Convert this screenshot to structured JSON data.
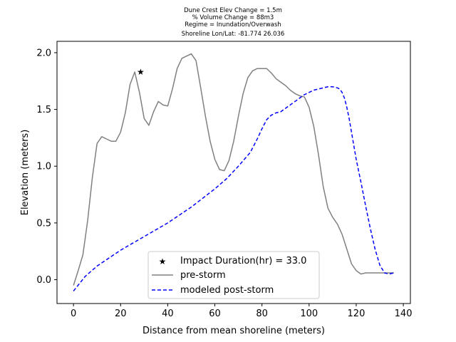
{
  "chart_data": {
    "type": "line",
    "title_lines": [
      "Dune Crest Elev Change = 1.5m",
      "% Volume Change = 88m3",
      "Regime = Inundation/Overwash",
      "Shoreline Lon/Lat: -81.774 26.036"
    ],
    "xlabel": "Distance from mean shoreline (meters)",
    "ylabel": "Elevation (meters)",
    "xlim": [
      -7,
      143
    ],
    "ylim": [
      -0.21,
      2.1
    ],
    "xticks": [
      0,
      20,
      40,
      60,
      80,
      100,
      120,
      140
    ],
    "yticks": [
      0.0,
      0.5,
      1.0,
      1.5,
      2.0
    ],
    "xtick_labels": [
      "0",
      "20",
      "40",
      "60",
      "80",
      "100",
      "120",
      "140"
    ],
    "ytick_labels": [
      "0.0",
      "0.5",
      "1.0",
      "1.5",
      "2.0"
    ],
    "grid": false,
    "legend_position": "lower-center",
    "series": [
      {
        "name": "Impact Duration(hr) = 33.0",
        "kind": "marker",
        "color": "#ff0000",
        "x": [
          28.5
        ],
        "y": [
          1.83
        ]
      },
      {
        "name": "pre-storm",
        "kind": "line",
        "color": "#808080",
        "x": [
          0,
          2,
          4,
          6,
          8,
          10,
          12,
          14,
          16,
          18,
          20,
          22,
          24,
          26,
          28,
          30,
          32,
          34,
          36,
          38,
          40,
          42,
          44,
          46,
          48,
          50,
          52,
          54,
          56,
          58,
          60,
          62,
          64,
          66,
          68,
          70,
          72,
          74,
          76,
          78,
          80,
          82,
          84,
          86,
          88,
          90,
          92,
          94,
          96,
          98,
          100,
          102,
          104,
          106,
          108,
          110,
          112,
          114,
          116,
          118,
          120,
          122,
          124,
          126,
          128,
          130,
          132,
          134,
          136
        ],
        "y": [
          -0.05,
          0.08,
          0.22,
          0.52,
          0.9,
          1.2,
          1.26,
          1.24,
          1.22,
          1.22,
          1.3,
          1.47,
          1.72,
          1.83,
          1.65,
          1.42,
          1.36,
          1.48,
          1.57,
          1.54,
          1.53,
          1.68,
          1.86,
          1.95,
          1.97,
          1.99,
          1.93,
          1.69,
          1.44,
          1.22,
          1.06,
          0.97,
          0.96,
          1.05,
          1.22,
          1.44,
          1.64,
          1.78,
          1.84,
          1.86,
          1.86,
          1.86,
          1.82,
          1.77,
          1.74,
          1.71,
          1.67,
          1.64,
          1.62,
          1.61,
          1.52,
          1.35,
          1.1,
          0.82,
          0.63,
          0.55,
          0.49,
          0.4,
          0.27,
          0.14,
          0.08,
          0.05,
          0.06,
          0.06,
          0.06,
          0.06,
          0.06,
          0.06,
          0.06
        ]
      },
      {
        "name": "modeled post-storm",
        "kind": "dashed",
        "color": "#0000ff",
        "x": [
          0,
          5,
          10,
          15,
          20,
          25,
          30,
          35,
          40,
          45,
          50,
          55,
          60,
          65,
          70,
          75,
          78,
          80,
          82,
          84,
          86,
          88,
          90,
          92,
          94,
          96,
          98,
          100,
          102,
          104,
          106,
          108,
          110,
          112,
          113,
          114,
          115,
          116,
          117,
          118,
          119,
          120,
          122,
          124,
          126,
          128,
          130,
          132,
          134,
          136
        ],
        "y": [
          -0.1,
          0.03,
          0.12,
          0.19,
          0.26,
          0.32,
          0.38,
          0.44,
          0.5,
          0.57,
          0.64,
          0.72,
          0.8,
          0.89,
          1.0,
          1.12,
          1.24,
          1.33,
          1.41,
          1.45,
          1.47,
          1.48,
          1.51,
          1.54,
          1.57,
          1.6,
          1.63,
          1.65,
          1.67,
          1.68,
          1.69,
          1.7,
          1.7,
          1.69,
          1.68,
          1.65,
          1.6,
          1.52,
          1.42,
          1.3,
          1.18,
          1.06,
          0.86,
          0.65,
          0.45,
          0.27,
          0.13,
          0.06,
          0.05,
          0.06
        ]
      }
    ]
  }
}
